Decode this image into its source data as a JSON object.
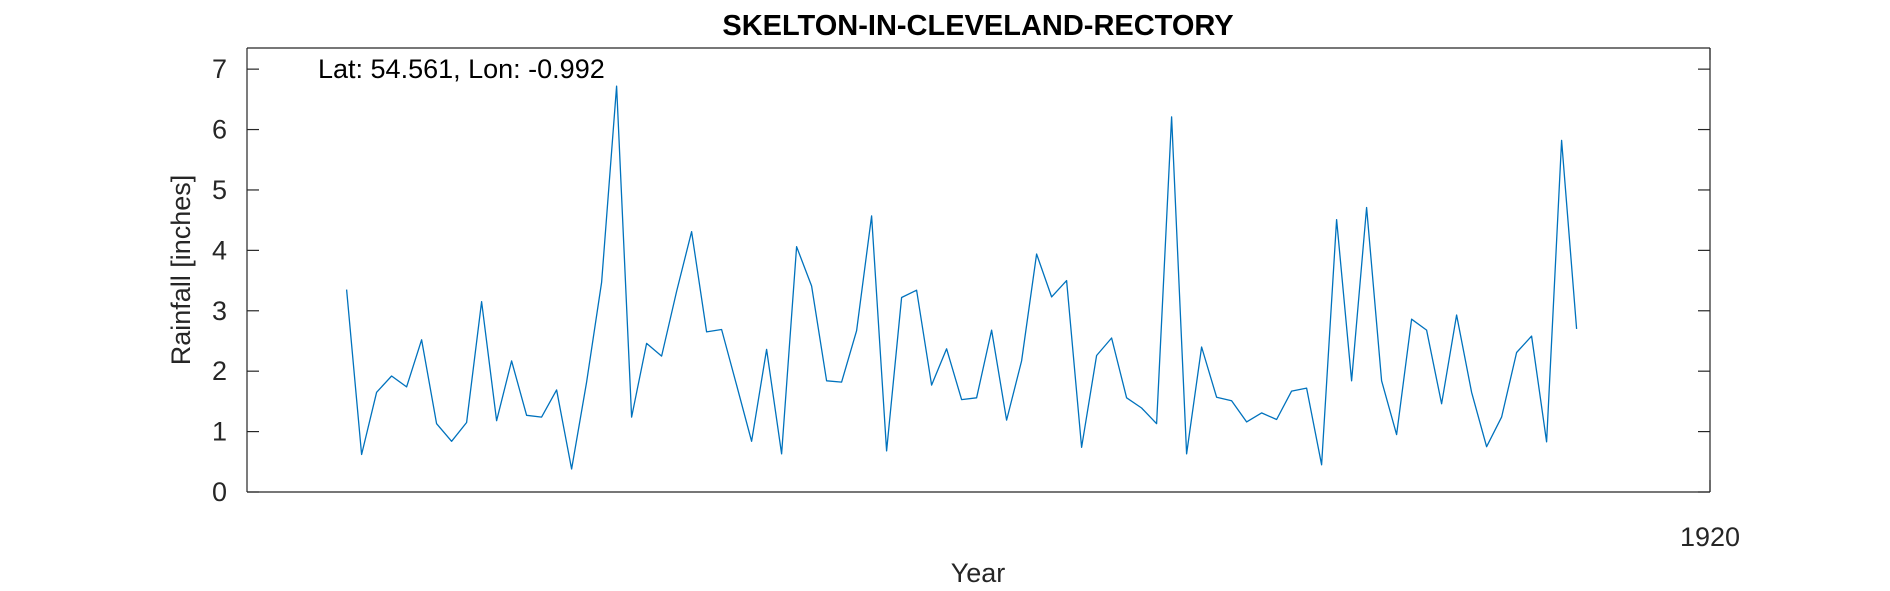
{
  "chart_data": {
    "type": "line",
    "title": "SKELTON-IN-CLEVELAND-RECTORY",
    "xlabel": "Year",
    "ylabel": "Rainfall [inches]",
    "annotation": "Lat: 54.561, Lon: -0.992",
    "xlim": [
      1846.85,
      1920
    ],
    "ylim": [
      0,
      7.35
    ],
    "xticks": [
      1920
    ],
    "yticks": [
      0,
      1,
      2,
      3,
      4,
      5,
      6,
      7
    ],
    "grid": false,
    "legend": "none",
    "series": [
      {
        "color": "#0072BD",
        "x": [
          1851.83,
          1852.58,
          1853.33,
          1854.08,
          1854.83,
          1855.58,
          1856.33,
          1857.08,
          1857.83,
          1858.58,
          1859.33,
          1860.08,
          1860.83,
          1861.58,
          1862.33,
          1863.08,
          1863.83,
          1864.58,
          1865.33,
          1866.08,
          1866.83,
          1867.58,
          1868.33,
          1869.08,
          1869.83,
          1870.58,
          1871.33,
          1872.08,
          1872.83,
          1873.58,
          1874.33,
          1875.08,
          1875.83,
          1876.58,
          1877.33,
          1878.08,
          1878.83,
          1879.58,
          1880.33,
          1881.08,
          1881.83,
          1882.58,
          1883.33,
          1884.08,
          1884.83,
          1885.58,
          1886.33,
          1887.08,
          1887.83,
          1888.58,
          1889.33,
          1890.08,
          1890.83,
          1891.58,
          1892.33,
          1893.08,
          1893.83,
          1894.58,
          1895.33,
          1896.08,
          1896.83,
          1897.58,
          1898.33,
          1899.08,
          1899.83,
          1900.58,
          1901.33,
          1902.08,
          1902.83,
          1903.58,
          1904.33,
          1905.08,
          1905.83,
          1906.58,
          1907.33,
          1908.08,
          1908.83,
          1909.58,
          1910.33,
          1911.08,
          1911.83,
          1912.58,
          1913.33
        ],
        "y": [
          3.35,
          0.62,
          1.65,
          1.92,
          1.74,
          2.52,
          1.13,
          0.84,
          1.15,
          3.15,
          1.18,
          2.17,
          1.27,
          1.24,
          1.69,
          0.38,
          1.82,
          3.47,
          6.72,
          1.24,
          2.46,
          2.25,
          3.32,
          4.31,
          2.65,
          2.69,
          1.77,
          0.84,
          2.36,
          0.63,
          4.06,
          3.41,
          1.84,
          1.82,
          2.67,
          4.57,
          0.68,
          3.22,
          3.34,
          1.77,
          2.37,
          1.53,
          1.56,
          2.68,
          1.19,
          2.17,
          3.94,
          3.23,
          3.5,
          0.74,
          2.26,
          2.55,
          1.56,
          1.39,
          1.13,
          6.21,
          0.63,
          2.4,
          1.57,
          1.51,
          1.16,
          1.31,
          1.2,
          1.67,
          1.72,
          0.45,
          4.51,
          1.84,
          4.71,
          1.84,
          0.95,
          2.86,
          2.68,
          1.46,
          2.93,
          1.65,
          0.75,
          1.24,
          2.31,
          2.58,
          0.83,
          5.82,
          2.7
        ]
      }
    ]
  }
}
